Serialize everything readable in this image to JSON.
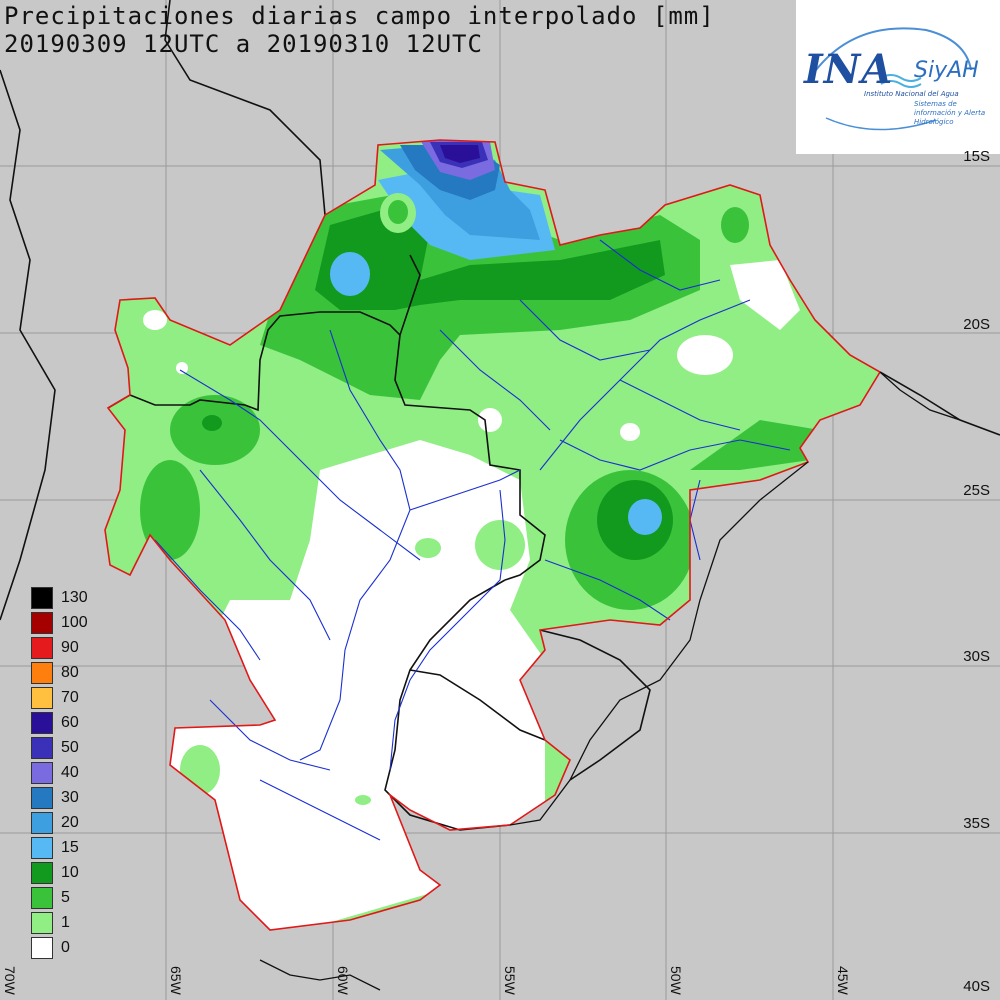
{
  "title_line1": "Precipitaciones diarias campo interpolado [mm]",
  "title_line2": "20190309 12UTC a 20190310 12UTC",
  "logo": {
    "name": "INA",
    "product": "SiyAH",
    "institution": "Instituto Nacional del Agua",
    "product_full": "Sistemas de información y Alerta Hidrológico"
  },
  "latitude_labels": [
    "15S",
    "20S",
    "25S",
    "30S",
    "35S",
    "40S"
  ],
  "longitude_labels": [
    "70W",
    "65W",
    "60W",
    "55W",
    "50W",
    "45W"
  ],
  "legend": {
    "levels": [
      "130",
      "100",
      "90",
      "80",
      "70",
      "60",
      "50",
      "40",
      "30",
      "20",
      "15",
      "10",
      "5",
      "1",
      "0"
    ],
    "colors": [
      "#000000",
      "#a50000",
      "#e41a1c",
      "#ff7f0e",
      "#ffbf3f",
      "#2a0f99",
      "#3a31b8",
      "#7a6be0",
      "#2479c0",
      "#3e9fe0",
      "#56b9f4",
      "#129a1e",
      "#3ac33a",
      "#90ee85",
      "#ffffff"
    ]
  },
  "colors": {
    "background": "#c8c8c8",
    "basin_outline": "#e01818",
    "rivers": "#1a2fd0",
    "borders": "#000000",
    "graticule": "#9a9a9a"
  }
}
